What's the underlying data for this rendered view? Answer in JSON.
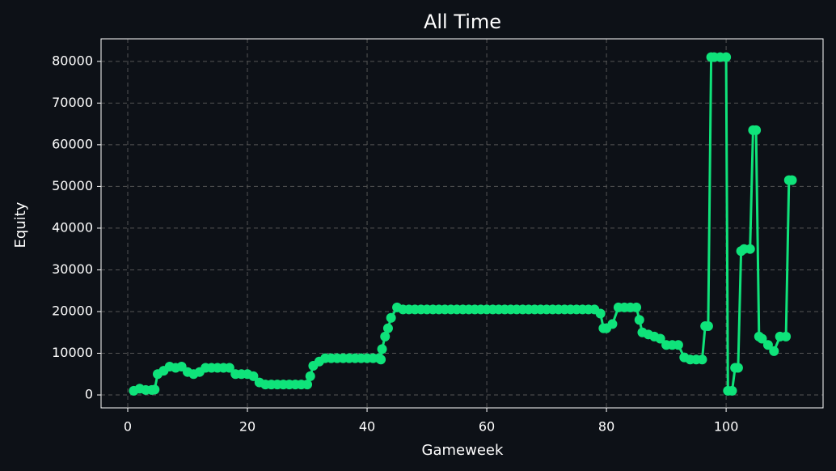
{
  "chart_data": {
    "type": "line",
    "title": "All Time",
    "x_label": "Gameweek",
    "y_label": "Equity",
    "x": [
      1,
      2,
      3,
      4,
      4.5,
      5,
      6,
      7,
      8,
      9,
      10,
      11,
      12,
      13,
      14,
      15,
      16,
      17,
      18,
      19,
      20,
      21,
      22,
      23,
      24,
      25,
      26,
      27,
      28,
      29,
      30,
      30.5,
      31,
      32,
      33,
      34,
      35,
      36,
      37,
      38,
      39,
      40,
      41,
      42,
      42.3,
      42.5,
      43,
      43.5,
      44,
      45,
      46,
      47,
      48,
      49,
      50,
      51,
      52,
      53,
      54,
      55,
      56,
      57,
      58,
      59,
      60,
      61,
      62,
      63,
      64,
      65,
      66,
      67,
      68,
      69,
      70,
      71,
      72,
      73,
      74,
      75,
      76,
      77,
      78,
      79,
      79.5,
      80,
      81,
      82,
      83,
      84,
      85,
      85.5,
      86,
      87,
      88,
      89,
      90,
      91,
      92,
      93,
      94,
      95,
      96,
      96.5,
      97,
      97.5,
      98,
      99,
      100,
      100.3,
      101,
      101.5,
      102,
      102.5,
      103,
      104,
      104.5,
      105,
      105.5,
      106,
      107,
      108,
      109,
      110,
      110.5,
      111
    ],
    "values": [
      1000,
      1500,
      1200,
      1200,
      1300,
      5000,
      5800,
      6800,
      6500,
      6800,
      5500,
      5000,
      5500,
      6500,
      6500,
      6500,
      6500,
      6500,
      5000,
      5000,
      5000,
      4500,
      3000,
      2500,
      2500,
      2500,
      2500,
      2500,
      2500,
      2500,
      2500,
      4500,
      7000,
      8000,
      8800,
      8800,
      8800,
      8800,
      8800,
      8800,
      8800,
      8800,
      8800,
      8800,
      8500,
      11000,
      14000,
      16000,
      18500,
      21000,
      20500,
      20500,
      20500,
      20500,
      20500,
      20500,
      20500,
      20500,
      20500,
      20500,
      20500,
      20500,
      20500,
      20500,
      20500,
      20500,
      20500,
      20500,
      20500,
      20500,
      20500,
      20500,
      20500,
      20500,
      20500,
      20500,
      20500,
      20500,
      20500,
      20500,
      20500,
      20500,
      20500,
      19500,
      16000,
      16000,
      17000,
      21000,
      21000,
      21000,
      21000,
      18000,
      15000,
      14500,
      14000,
      13500,
      12000,
      12000,
      12000,
      9000,
      8500,
      8500,
      8500,
      16500,
      16500,
      81000,
      81000,
      81000,
      81000,
      1000,
      1000,
      6500,
      6500,
      34500,
      35000,
      35000,
      63500,
      63500,
      14000,
      13500,
      12000,
      10500,
      14000,
      14000,
      51500,
      51500
    ],
    "color": "#0fe37a",
    "xlim": [
      -4.46,
      116.2
    ],
    "ylim": [
      -3100,
      85400
    ],
    "xticks": [
      0,
      20,
      40,
      60,
      80,
      100
    ],
    "yticks": [
      0,
      10000,
      20000,
      30000,
      40000,
      50000,
      60000,
      70000,
      80000
    ],
    "grid": true
  }
}
